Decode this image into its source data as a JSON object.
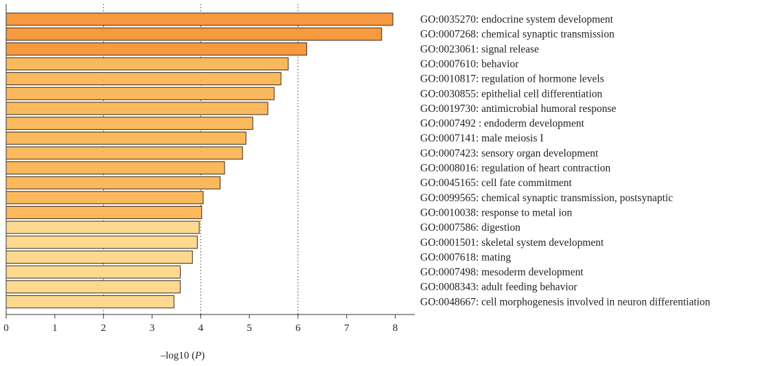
{
  "chart_data": {
    "type": "bar",
    "orientation": "horizontal",
    "categories": [
      "GO:0035270: endocrine system development",
      "GO:0007268: chemical synaptic transmission",
      "GO:0023061: signal release",
      "GO:0007610: behavior",
      "GO:0010817: regulation of hormone levels",
      "GO:0030855: epithelial cell differentiation",
      "GO:0019730: antimicrobial humoral response",
      "GO:0007492 : endoderm development",
      "GO:0007141: male meiosis I",
      "GO:0007423: sensory organ development",
      "GO:0008016: regulation of heart contraction",
      "GO:0045165: cell fate commitment",
      "GO:0099565: chemical synaptic transmission, postsynaptic",
      "GO:0010038: response to metal ion",
      "GO:0007586: digestion",
      "GO:0001501: skeletal system development",
      "GO:0007618: mating",
      "GO:0007498: mesoderm development",
      "GO:0008343: adult feeding behavior",
      "GO:0048667: cell morphogenesis involved in neuron differentiation"
    ],
    "values": [
      7.95,
      7.72,
      6.18,
      5.8,
      5.65,
      5.51,
      5.38,
      5.07,
      4.93,
      4.86,
      4.49,
      4.4,
      4.05,
      4.02,
      3.97,
      3.93,
      3.83,
      3.58,
      3.58,
      3.45
    ],
    "bar_colors": [
      "#f7993f",
      "#f7993f",
      "#f7993f",
      "#fab95c",
      "#fab95c",
      "#fab95c",
      "#fab95c",
      "#fab95c",
      "#fab95c",
      "#fab95c",
      "#fab95c",
      "#fab95c",
      "#fab95c",
      "#fab95c",
      "#fcd98f",
      "#fcd98f",
      "#fcd98f",
      "#fcd98f",
      "#fcd98f",
      "#fcd98f"
    ],
    "xlim": [
      0,
      8.4
    ],
    "xticks": [
      0,
      1,
      2,
      3,
      4,
      5,
      6,
      7,
      8
    ],
    "gridlines_x": [
      2,
      4,
      6
    ],
    "grid": "dotted vertical",
    "xlabel_prefix": "–log10 (",
    "xlabel_var": "P",
    "xlabel_suffix": ")",
    "title": "",
    "ylabel": ""
  }
}
